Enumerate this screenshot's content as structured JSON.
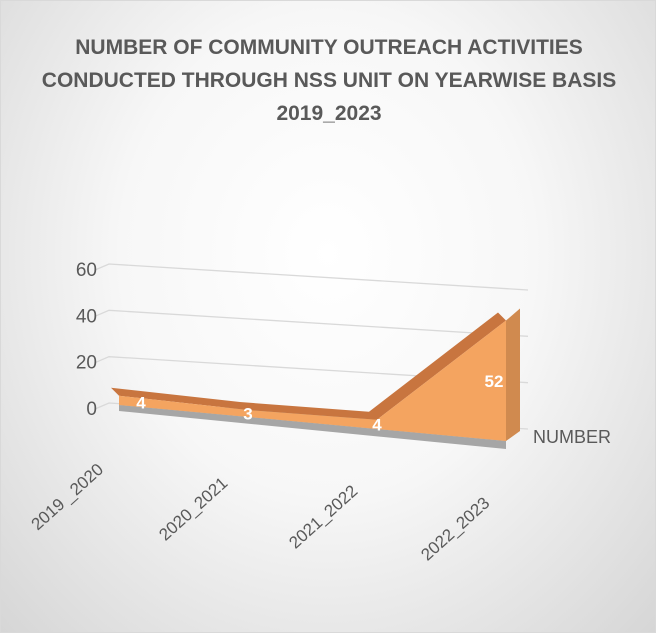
{
  "chart_data": {
    "type": "area",
    "title": "NUMBER OF COMMUNITY OUTREACH ACTIVITIES CONDUCTED  THROUGH NSS UNIT ON YEARWISE BASIS 2019_2023",
    "categories": [
      "2019 _2020",
      "2020_2021",
      "2021_2022",
      "2022_2023"
    ],
    "series": [
      {
        "name": "NUMBER",
        "values": [
          4,
          3,
          4,
          52
        ]
      }
    ],
    "ylim": [
      0,
      60
    ],
    "yticks": [
      "0",
      "20",
      "40",
      "60"
    ],
    "grid": true,
    "legend": "right",
    "colors": {
      "area_front": "#f4a460",
      "area_top": "#c8753f",
      "floor": "#a6a6a6",
      "grid": "#d9d9d9",
      "text": "#595959"
    }
  }
}
